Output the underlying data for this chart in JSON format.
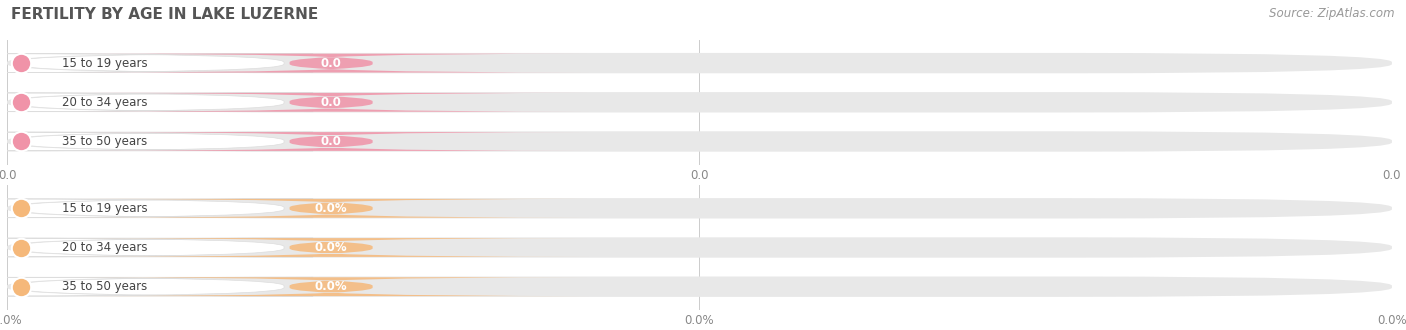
{
  "title": "FERTILITY BY AGE IN LAKE LUZERNE",
  "source_text": "Source: ZipAtlas.com",
  "categories": [
    "15 to 19 years",
    "20 to 34 years",
    "35 to 50 years"
  ],
  "values_count": [
    0.0,
    0.0,
    0.0
  ],
  "values_pct": [
    0.0,
    0.0,
    0.0
  ],
  "bar_color_top": "#f093a8",
  "bar_color_bottom": "#f5b87a",
  "circle_color_top": "#f093a8",
  "circle_color_bottom": "#f5b87a",
  "label_pill_bg": "#ffffff",
  "overall_bar_bg": "#e8e8e8",
  "background_color": "#ffffff",
  "title_fontsize": 11,
  "source_fontsize": 8.5,
  "label_fontsize": 8.5,
  "tick_fontsize": 8.5,
  "fig_width": 14.06,
  "fig_height": 3.3
}
